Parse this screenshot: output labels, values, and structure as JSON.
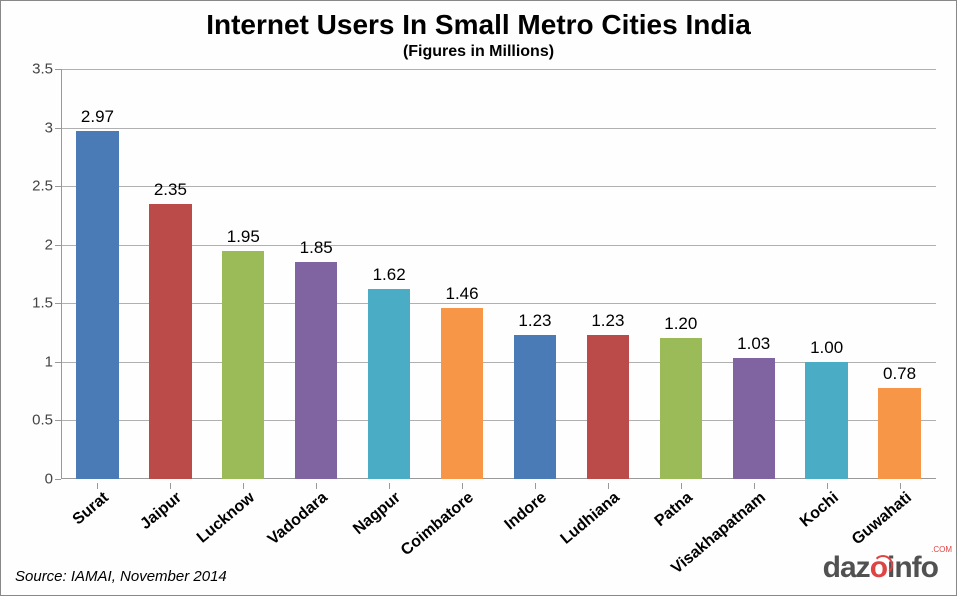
{
  "chart": {
    "type": "bar",
    "title": "Internet Users In Small Metro Cities India",
    "title_fontsize": 28,
    "subtitle": "(Figures in Millions)",
    "subtitle_fontsize": 16,
    "categories": [
      "Surat",
      "Jaipur",
      "Lucknow",
      "Vadodara",
      "Nagpur",
      "Coimbatore",
      "Indore",
      "Ludhiana",
      "Patna",
      "Visakhapatnam",
      "Kochi",
      "Guwahati"
    ],
    "values": [
      2.97,
      2.35,
      1.95,
      1.85,
      1.62,
      1.46,
      1.23,
      1.23,
      1.2,
      1.03,
      1.0,
      0.78
    ],
    "bar_colors": [
      "#4a7bb7",
      "#bb4b49",
      "#9bbb59",
      "#8064a2",
      "#4bacc6",
      "#f79646",
      "#4a7bb7",
      "#bb4b49",
      "#9bbb59",
      "#8064a2",
      "#4bacc6",
      "#f79646"
    ],
    "ylim": [
      0,
      3.5
    ],
    "ytick_step": 0.5,
    "ytick_labels": [
      "0",
      "0.5",
      "1",
      "1.5",
      "2",
      "2.5",
      "3",
      "3.5"
    ],
    "grid_color": "#b0b0b0",
    "background_color": "#fefefe",
    "axis_color": "#999999",
    "tick_fontsize": 15,
    "value_label_fontsize": 17,
    "xlabel_fontsize": 16,
    "xlabel_rotation": -40,
    "bar_width_ratio": 0.58,
    "source_text": "Source: IAMAI, November 2014",
    "source_fontsize": 15,
    "watermark": {
      "text_prefix": "daz",
      "text_o": "o",
      "text_suffix": "info",
      "com": ".COM",
      "fontsize": 30,
      "color_dark": "#333333",
      "color_accent": "#d92424"
    }
  }
}
